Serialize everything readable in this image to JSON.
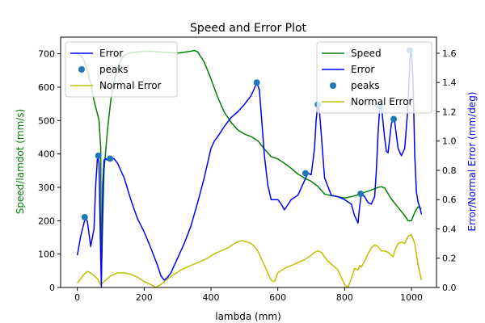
{
  "chart_data": {
    "type": "line",
    "title": "Speed and Error Plot",
    "xlabel": "lambda (mm)",
    "ylabel_left": "Speed/lamdot (mm/s)",
    "ylabel_right": "Error/Normal Error (mm/deg)",
    "xlim": [
      -50,
      1075
    ],
    "ylim_left": [
      0,
      750
    ],
    "ylim_right": [
      0,
      1.71
    ],
    "x_ticks": [
      0,
      200,
      400,
      600,
      800,
      1000
    ],
    "y_left_ticks": [
      0,
      100,
      200,
      300,
      400,
      500,
      600,
      700
    ],
    "y_right_ticks": [
      0.0,
      0.2,
      0.4,
      0.6,
      0.8,
      1.0,
      1.2,
      1.4,
      1.6
    ],
    "grid": false,
    "colors": {
      "speed": "#008000",
      "error": "#0000ff",
      "peaks": "#1f77b4",
      "normal_error": "#bfbf00",
      "left_axis_label": "#008000",
      "right_axis_label": "#0000ff"
    },
    "series": [
      {
        "name": "Speed",
        "axis": "left",
        "color": "#008000",
        "kind": "line",
        "x": [
          0,
          10,
          20,
          30,
          40,
          50,
          60,
          65,
          70,
          72,
          76,
          80,
          90,
          100,
          110,
          120,
          130,
          140,
          150,
          160,
          180,
          200,
          220,
          240,
          260,
          280,
          300,
          320,
          340,
          350,
          360,
          380,
          400,
          420,
          440,
          460,
          480,
          500,
          520,
          540,
          560,
          580,
          600,
          620,
          640,
          660,
          680,
          700,
          720,
          740,
          760,
          780,
          800,
          820,
          840,
          860,
          880,
          900,
          910,
          920,
          940,
          960,
          980,
          990,
          1000,
          1010,
          1020,
          1030
        ],
        "y": [
          700,
          695,
          680,
          650,
          610,
          560,
          520,
          500,
          420,
          40,
          200,
          350,
          470,
          560,
          620,
          660,
          680,
          695,
          700,
          704,
          706,
          707,
          708,
          706,
          705,
          704,
          702,
          705,
          708,
          710,
          706,
          675,
          625,
          570,
          525,
          495,
          472,
          460,
          452,
          440,
          415,
          392,
          385,
          372,
          357,
          340,
          328,
          318,
          303,
          280,
          275,
          272,
          268,
          272,
          278,
          285,
          292,
          300,
          302,
          298,
          265,
          240,
          215,
          200,
          200,
          225,
          242,
          235
        ]
      },
      {
        "name": "Error",
        "axis": "right",
        "color": "#0000ff",
        "kind": "line",
        "x": [
          0,
          10,
          20,
          25,
          30,
          40,
          50,
          55,
          60,
          62,
          65,
          70,
          72,
          74,
          76,
          80,
          85,
          90,
          95,
          100,
          110,
          120,
          140,
          160,
          180,
          200,
          220,
          240,
          250,
          260,
          270,
          280,
          300,
          320,
          340,
          360,
          380,
          400,
          410,
          420,
          440,
          460,
          480,
          500,
          520,
          530,
          537,
          545,
          550,
          560,
          570,
          580,
          600,
          610,
          620,
          640,
          660,
          680,
          690,
          700,
          710,
          715,
          720,
          725,
          730,
          740,
          760,
          780,
          800,
          820,
          830,
          840,
          845,
          850,
          860,
          870,
          880,
          890,
          895,
          900,
          905,
          910,
          920,
          925,
          930,
          940,
          945,
          950,
          960,
          970,
          980,
          990,
          995,
          1000,
          1005,
          1010,
          1015,
          1020,
          1025,
          1030
        ],
        "y": [
          0.22,
          0.35,
          0.44,
          0.48,
          0.45,
          0.28,
          0.4,
          0.7,
          0.88,
          0.9,
          0.85,
          0.2,
          0.0,
          0.35,
          0.7,
          0.87,
          0.88,
          0.87,
          0.88,
          0.88,
          0.88,
          0.85,
          0.75,
          0.6,
          0.47,
          0.38,
          0.27,
          0.15,
          0.08,
          0.05,
          0.07,
          0.1,
          0.2,
          0.3,
          0.42,
          0.58,
          0.75,
          0.95,
          1.0,
          1.03,
          1.1,
          1.16,
          1.2,
          1.25,
          1.31,
          1.36,
          1.4,
          1.35,
          1.2,
          0.9,
          0.7,
          0.6,
          0.6,
          0.57,
          0.53,
          0.6,
          0.63,
          0.73,
          0.78,
          0.77,
          0.95,
          1.15,
          1.25,
          1.2,
          1.05,
          0.75,
          0.63,
          0.62,
          0.6,
          0.57,
          0.49,
          0.44,
          0.55,
          0.64,
          0.62,
          0.58,
          0.57,
          0.62,
          0.8,
          1.05,
          1.22,
          1.24,
          1.02,
          0.93,
          0.92,
          1.12,
          1.15,
          1.13,
          0.95,
          0.9,
          0.95,
          1.25,
          1.55,
          1.62,
          1.4,
          0.9,
          0.65,
          0.58,
          0.55,
          0.5
        ]
      },
      {
        "name": "peaks",
        "axis": "right",
        "color": "#1f77b4",
        "kind": "scatter",
        "x": [
          22,
          63,
          98,
          537,
          683,
          720,
          848,
          905,
          947,
          995
        ],
        "y": [
          0.48,
          0.9,
          0.88,
          1.4,
          0.78,
          1.25,
          0.64,
          1.24,
          1.15,
          1.62
        ]
      },
      {
        "name": "Normal Error",
        "axis": "right",
        "color": "#bfbf00",
        "kind": "line",
        "x": [
          0,
          10,
          20,
          30,
          40,
          50,
          60,
          65,
          70,
          80,
          90,
          100,
          110,
          120,
          140,
          160,
          180,
          200,
          220,
          235,
          250,
          270,
          290,
          310,
          330,
          350,
          370,
          390,
          410,
          430,
          450,
          470,
          490,
          510,
          520,
          530,
          540,
          550,
          560,
          570,
          580,
          590,
          600,
          620,
          640,
          660,
          680,
          700,
          710,
          720,
          730,
          740,
          750,
          760,
          780,
          800,
          810,
          820,
          830,
          840,
          845,
          850,
          860,
          870,
          880,
          890,
          900,
          910,
          920,
          930,
          940,
          945,
          950,
          960,
          970,
          980,
          990,
          1000,
          1010,
          1020,
          1030
        ],
        "y": [
          0.03,
          0.06,
          0.09,
          0.11,
          0.1,
          0.08,
          0.06,
          0.04,
          0.02,
          0.04,
          0.06,
          0.08,
          0.09,
          0.1,
          0.1,
          0.09,
          0.07,
          0.04,
          0.02,
          0.0,
          0.02,
          0.06,
          0.09,
          0.12,
          0.14,
          0.16,
          0.18,
          0.2,
          0.23,
          0.25,
          0.27,
          0.3,
          0.32,
          0.31,
          0.3,
          0.28,
          0.25,
          0.2,
          0.15,
          0.1,
          0.05,
          0.04,
          0.1,
          0.13,
          0.15,
          0.17,
          0.19,
          0.22,
          0.24,
          0.25,
          0.24,
          0.21,
          0.18,
          0.16,
          0.12,
          0.02,
          0.0,
          0.06,
          0.13,
          0.12,
          0.15,
          0.14,
          0.18,
          0.23,
          0.27,
          0.29,
          0.28,
          0.25,
          0.25,
          0.24,
          0.22,
          0.21,
          0.25,
          0.3,
          0.31,
          0.3,
          0.35,
          0.36,
          0.3,
          0.15,
          0.05
        ]
      }
    ],
    "legends": [
      {
        "placement": "upper-left",
        "entries": [
          "Error",
          "peaks",
          "Normal Error"
        ]
      },
      {
        "placement": "upper-right",
        "entries": [
          "Speed",
          "Error",
          "peaks",
          "Normal Error"
        ]
      }
    ]
  }
}
